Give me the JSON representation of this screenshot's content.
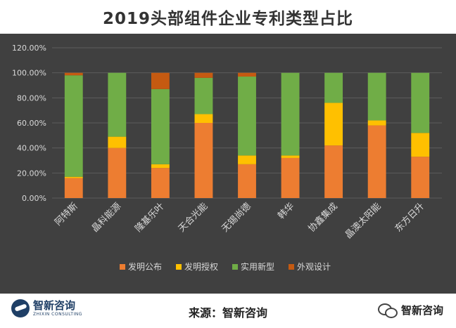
{
  "header": {
    "title": "2019头部组件企业专利类型占比"
  },
  "footer": {
    "logo_cn": "智新咨询",
    "logo_en": "ZHIXIN CONSULTING",
    "source_label": "来源：智新咨询",
    "wechat_name": "智新咨询"
  },
  "colors": {
    "background": "#404040",
    "grid": "#5c5c5c",
    "text": "#d9d9d9"
  },
  "chart_data": {
    "type": "bar",
    "stacked": true,
    "title": "2019头部组件企业专利类型占比",
    "categories": [
      "阿特斯",
      "晶科能源",
      "隆基乐叶",
      "天合光能",
      "无锡尚德",
      "韩华",
      "协鑫集成",
      "晶澳太阳能",
      "东方日升"
    ],
    "ylim": [
      0,
      1.2
    ],
    "yticks": [
      0,
      0.2,
      0.4,
      0.6,
      0.8,
      1.0,
      1.2
    ],
    "ytick_labels": [
      "0.00%",
      "20.00%",
      "40.00%",
      "60.00%",
      "80.00%",
      "100.00%",
      "120.00%"
    ],
    "grid": true,
    "legend_position": "bottom",
    "series": [
      {
        "name": "发明公布",
        "color": "#ed7d31",
        "values": [
          0.16,
          0.4,
          0.24,
          0.6,
          0.27,
          0.32,
          0.42,
          0.58,
          0.33
        ]
      },
      {
        "name": "发明授权",
        "color": "#ffc000",
        "values": [
          0.01,
          0.09,
          0.03,
          0.07,
          0.07,
          0.02,
          0.34,
          0.04,
          0.19
        ]
      },
      {
        "name": "实用新型",
        "color": "#70ad47",
        "values": [
          0.81,
          0.51,
          0.6,
          0.29,
          0.63,
          0.66,
          0.24,
          0.38,
          0.48
        ]
      },
      {
        "name": "外观设计",
        "color": "#c55a11",
        "values": [
          0.02,
          0.0,
          0.13,
          0.04,
          0.03,
          0.0,
          0.0,
          0.0,
          0.0
        ]
      }
    ]
  }
}
